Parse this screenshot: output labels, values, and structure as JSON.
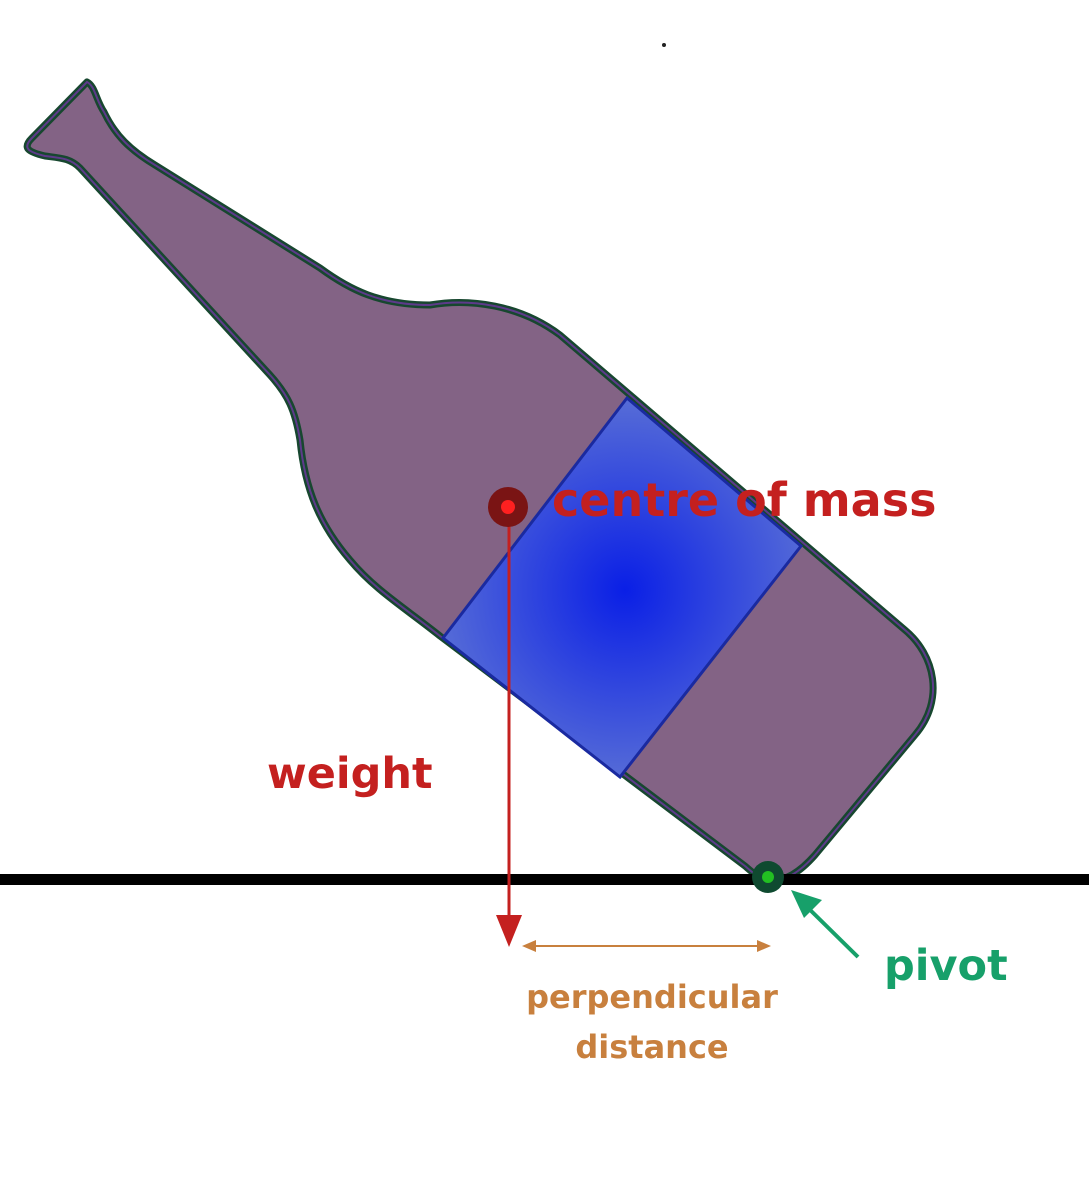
{
  "labels": {
    "centre_of_mass": "centre of mass",
    "weight": "weight",
    "pivot": "pivot",
    "perpendicular_line1": "perpendicular",
    "perpendicular_line2": "distance"
  },
  "colors": {
    "bottle_fill": "#836385",
    "bottle_outline": "#17472f",
    "label_band_center": "#0a1fe6",
    "label_band_edge": "#5a70d6",
    "weight_red": "#c4201f",
    "centre_dot_dark": "#7a1414",
    "pivot_green": "#17a06a",
    "pivot_dot": "#22c022",
    "distance_orange": "#c8803e",
    "ground": "#000000"
  }
}
